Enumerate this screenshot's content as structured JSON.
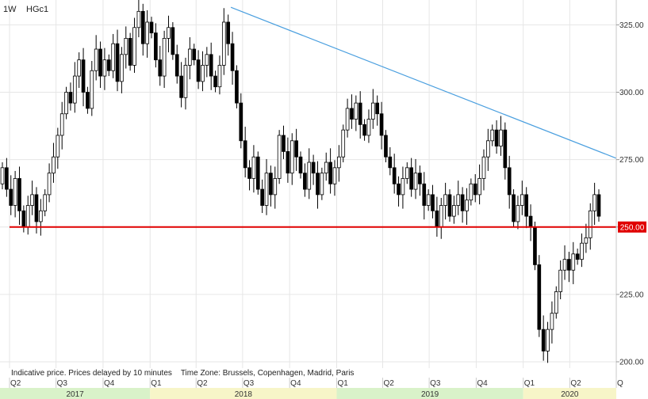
{
  "header": {
    "period": "1W",
    "symbol": "HGc1"
  },
  "footer_note": "Indicative price. Prices delayed by 10 minutes    Time Zone: Brussels, Copenhagen, Madrid, Paris",
  "colors": {
    "candle": "#000000",
    "support_line": "#e00000",
    "trend_line": "#4a9fdf",
    "price_tag_bg": "#e00000",
    "year_band_a": "#d9f2c9",
    "year_band_b": "#f7f5c8"
  },
  "chart_data": {
    "type": "candlestick",
    "y_ticks": [
      "325.00",
      "300.00",
      "275.00",
      "250.00",
      "225.00",
      "200.00"
    ],
    "ylim": [
      196,
      332
    ],
    "xlim": [
      "2017-04-01",
      "2020-07-01"
    ],
    "quarter_labels": [
      {
        "label": "Q2",
        "date": "2017-04-01"
      },
      {
        "label": "Q3",
        "date": "2017-07-01"
      },
      {
        "label": "Q4",
        "date": "2017-10-01"
      },
      {
        "label": "Q1",
        "date": "2018-01-01"
      },
      {
        "label": "Q2",
        "date": "2018-04-01"
      },
      {
        "label": "Q3",
        "date": "2018-07-01"
      },
      {
        "label": "Q4",
        "date": "2018-10-01"
      },
      {
        "label": "Q1",
        "date": "2019-01-01"
      },
      {
        "label": "Q2",
        "date": "2019-04-01"
      },
      {
        "label": "Q3",
        "date": "2019-07-01"
      },
      {
        "label": "Q4",
        "date": "2019-10-01"
      },
      {
        "label": "Q1",
        "date": "2020-01-01"
      },
      {
        "label": "Q2",
        "date": "2020-04-01"
      },
      {
        "label": "Q",
        "date": "2020-07-01"
      }
    ],
    "year_bands": [
      {
        "label": "2017",
        "start": "2017-04-01",
        "end": "2018-01-01"
      },
      {
        "label": "2018",
        "start": "2018-01-01",
        "end": "2019-01-01"
      },
      {
        "label": "2019",
        "start": "2019-01-01",
        "end": "2020-01-01"
      },
      {
        "label": "2020",
        "start": "2020-01-01",
        "end": "2020-07-01"
      }
    ],
    "support_line": {
      "value": 250.0,
      "label": "250.00"
    },
    "trend_line": {
      "start": {
        "date": "2018-06-08",
        "value": 331.5
      },
      "end": {
        "date": "2020-07-01",
        "value": 275.5
      }
    },
    "closes": [
      [
        266,
        272
      ],
      [
        272,
        264
      ],
      [
        264,
        258
      ],
      [
        258,
        268
      ],
      [
        268,
        256
      ],
      [
        256,
        250
      ],
      [
        250,
        258
      ],
      [
        258,
        262
      ],
      [
        262,
        252
      ],
      [
        252,
        256
      ],
      [
        256,
        262
      ],
      [
        262,
        270
      ],
      [
        270,
        276
      ],
      [
        276,
        284
      ],
      [
        284,
        292
      ],
      [
        292,
        300
      ],
      [
        300,
        296
      ],
      [
        296,
        306
      ],
      [
        306,
        312
      ],
      [
        312,
        300
      ],
      [
        300,
        294
      ],
      [
        294,
        308
      ],
      [
        308,
        316
      ],
      [
        316,
        306
      ],
      [
        306,
        312
      ],
      [
        312,
        308
      ],
      [
        308,
        318
      ],
      [
        318,
        304
      ],
      [
        304,
        314
      ],
      [
        314,
        320
      ],
      [
        320,
        310
      ],
      [
        310,
        324
      ],
      [
        324,
        330
      ],
      [
        330,
        318
      ],
      [
        318,
        326
      ],
      [
        326,
        322
      ],
      [
        322,
        312
      ],
      [
        312,
        306
      ],
      [
        306,
        320
      ],
      [
        320,
        324
      ],
      [
        324,
        314
      ],
      [
        314,
        306
      ],
      [
        306,
        298
      ],
      [
        298,
        310
      ],
      [
        310,
        316
      ],
      [
        316,
        312
      ],
      [
        312,
        304
      ],
      [
        304,
        310
      ],
      [
        310,
        314
      ],
      [
        314,
        306
      ],
      [
        306,
        302
      ],
      [
        302,
        310
      ],
      [
        310,
        326
      ],
      [
        326,
        318
      ],
      [
        318,
        308
      ],
      [
        308,
        296
      ],
      [
        296,
        282
      ],
      [
        282,
        272
      ],
      [
        272,
        268
      ],
      [
        268,
        276
      ],
      [
        276,
        264
      ],
      [
        264,
        258
      ],
      [
        258,
        270
      ],
      [
        270,
        262
      ],
      [
        262,
        268
      ],
      [
        268,
        284
      ],
      [
        284,
        278
      ],
      [
        278,
        270
      ],
      [
        270,
        282
      ],
      [
        282,
        276
      ],
      [
        276,
        270
      ],
      [
        270,
        264
      ],
      [
        264,
        274
      ],
      [
        274,
        270
      ],
      [
        270,
        262
      ],
      [
        262,
        270
      ],
      [
        270,
        274
      ],
      [
        274,
        266
      ],
      [
        266,
        272
      ],
      [
        272,
        276
      ],
      [
        276,
        286
      ],
      [
        286,
        294
      ],
      [
        294,
        290
      ],
      [
        290,
        296
      ],
      [
        296,
        288
      ],
      [
        288,
        284
      ],
      [
        284,
        290
      ],
      [
        290,
        296
      ],
      [
        296,
        292
      ],
      [
        292,
        284
      ],
      [
        284,
        276
      ],
      [
        276,
        272
      ],
      [
        272,
        266
      ],
      [
        266,
        262
      ],
      [
        262,
        268
      ],
      [
        268,
        272
      ],
      [
        272,
        264
      ],
      [
        264,
        270
      ],
      [
        270,
        266
      ],
      [
        266,
        258
      ],
      [
        258,
        262
      ],
      [
        262,
        256
      ],
      [
        256,
        250
      ],
      [
        250,
        258
      ],
      [
        258,
        262
      ],
      [
        262,
        254
      ],
      [
        254,
        258
      ],
      [
        258,
        262
      ],
      [
        262,
        256
      ],
      [
        256,
        260
      ],
      [
        260,
        266
      ],
      [
        266,
        262
      ],
      [
        262,
        268
      ],
      [
        268,
        276
      ],
      [
        276,
        282
      ],
      [
        282,
        286
      ],
      [
        286,
        280
      ],
      [
        280,
        286
      ],
      [
        286,
        272
      ],
      [
        272,
        262
      ],
      [
        262,
        252
      ],
      [
        252,
        258
      ],
      [
        258,
        262
      ],
      [
        262,
        254
      ],
      [
        254,
        250
      ],
      [
        250,
        236
      ],
      [
        236,
        212
      ],
      [
        212,
        204
      ],
      [
        204,
        212
      ],
      [
        212,
        218
      ],
      [
        218,
        226
      ],
      [
        226,
        234
      ],
      [
        234,
        238
      ],
      [
        238,
        234
      ],
      [
        234,
        240
      ],
      [
        240,
        238
      ],
      [
        238,
        244
      ],
      [
        244,
        246
      ],
      [
        246,
        256
      ],
      [
        256,
        262
      ],
      [
        262,
        254
      ]
    ]
  }
}
